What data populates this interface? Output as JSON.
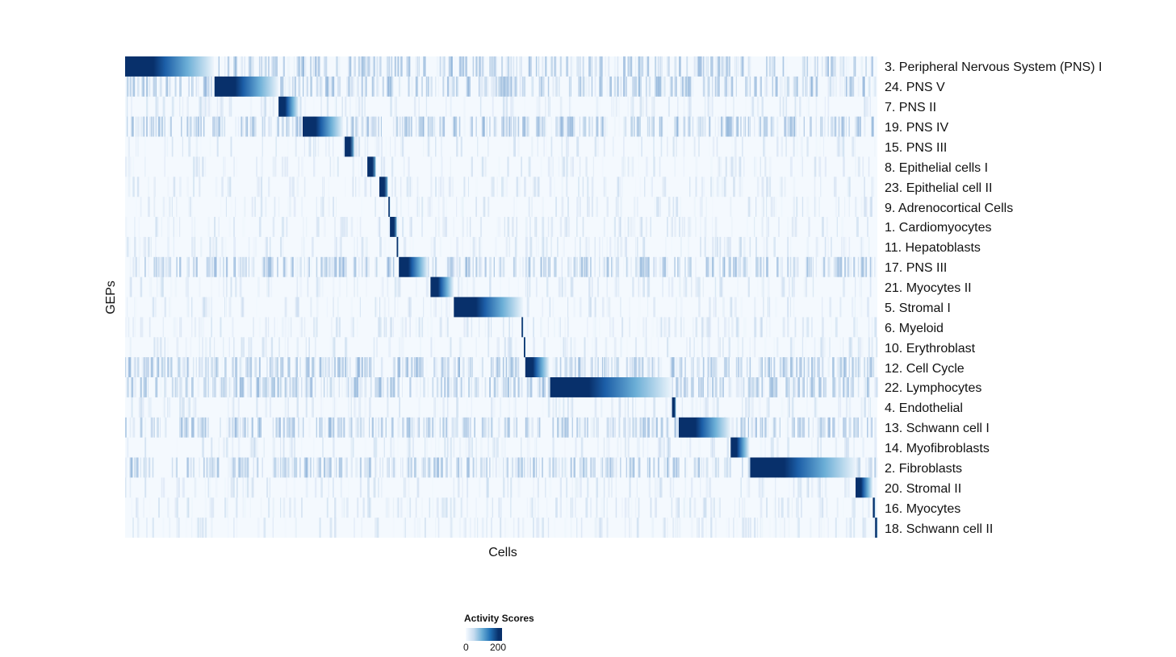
{
  "chart_data": {
    "type": "heatmap",
    "xlabel": "Cells",
    "ylabel": "GEPs",
    "x_ticks_shown": false,
    "colorscale": [
      "#f7fbff",
      "#c6dbef",
      "#6baed6",
      "#2171b5",
      "#08306b"
    ],
    "legend": {
      "title": "Activity Scores",
      "min_label": "0",
      "max_label": "200",
      "range": [
        0,
        200
      ],
      "placement": "bottom"
    },
    "rows": [
      {
        "label": "3. Peripheral Nervous System (PNS) I",
        "block": [
          0,
          118
        ]
      },
      {
        "label": "24. PNS V",
        "block": [
          119,
          204
        ]
      },
      {
        "label": "7. PNS II",
        "block": [
          204,
          231
        ]
      },
      {
        "label": "19. PNS IV",
        "block": [
          236,
          290
        ]
      },
      {
        "label": "15. PNS III",
        "block": [
          292,
          304
        ]
      },
      {
        "label": "8. Epithelial cells I",
        "block": [
          322,
          333
        ]
      },
      {
        "label": "23. Epithelial cell II",
        "block": [
          338,
          349
        ]
      },
      {
        "label": "9. Adrenocortical Cells",
        "block": [
          350,
          352
        ]
      },
      {
        "label": "1. Cardiomyocytes",
        "block": [
          352,
          361
        ]
      },
      {
        "label": "11. Hepatoblasts",
        "block": [
          361,
          363
        ]
      },
      {
        "label": "17. PNS III",
        "block": [
          364,
          403
        ]
      },
      {
        "label": "21. Myocytes II",
        "block": [
          406,
          437
        ]
      },
      {
        "label": "5. Stromal I",
        "block": [
          437,
          529
        ]
      },
      {
        "label": "6. Myeloid",
        "block": [
          527,
          529
        ]
      },
      {
        "label": "10. Erythroblast",
        "block": [
          530,
          532
        ]
      },
      {
        "label": "12. Cell Cycle",
        "block": [
          532,
          564
        ]
      },
      {
        "label": "22. Lymphocytes",
        "block": [
          565,
          727
        ]
      },
      {
        "label": "4. Endothelial",
        "block": [
          727,
          732
        ]
      },
      {
        "label": "13. Schwann cell I",
        "block": [
          736,
          805
        ]
      },
      {
        "label": "14. Myofibroblasts",
        "block": [
          805,
          830
        ]
      },
      {
        "label": "2. Fibroblasts",
        "block": [
          831,
          972
        ]
      },
      {
        "label": "20. Stromal II",
        "block": [
          971,
          994
        ]
      },
      {
        "label": "16. Myocytes",
        "block": [
          994,
          997
        ]
      },
      {
        "label": "18. Schwann cell II",
        "block": [
          997,
          1000
        ]
      }
    ],
    "n_cells": 1000
  }
}
